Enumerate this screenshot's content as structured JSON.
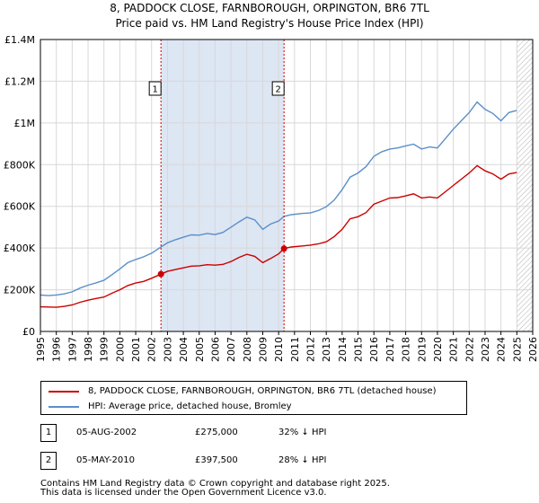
{
  "title_line1": "8, PADDOCK CLOSE, FARNBOROUGH, ORPINGTON, BR6 7TL",
  "title_line2": "Price paid vs. HM Land Registry's House Price Index (HPI)",
  "colors": {
    "property": "#cc0000",
    "hpi": "#5b8fc9",
    "shade": "#dde6f3",
    "grid": "#d8d8d8"
  },
  "chart_data": {
    "type": "line",
    "title": "Price paid vs. HM Land Registry's House Price Index (HPI)",
    "xlabel": "",
    "ylabel": "",
    "xlim": [
      1995,
      2026
    ],
    "ylim": [
      0,
      1400000
    ],
    "grid": true,
    "y_ticks": [
      {
        "value": 0,
        "label": "£0"
      },
      {
        "value": 200000,
        "label": "£200K"
      },
      {
        "value": 400000,
        "label": "£400K"
      },
      {
        "value": 600000,
        "label": "£600K"
      },
      {
        "value": 800000,
        "label": "£800K"
      },
      {
        "value": 1000000,
        "label": "£1M"
      },
      {
        "value": 1200000,
        "label": "£1.2M"
      },
      {
        "value": 1400000,
        "label": "£1.4M"
      }
    ],
    "x_ticks": [
      "1995",
      "1996",
      "1997",
      "1998",
      "1999",
      "2000",
      "2001",
      "2002",
      "2003",
      "2004",
      "2005",
      "2006",
      "2007",
      "2008",
      "2009",
      "2010",
      "2011",
      "2012",
      "2013",
      "2014",
      "2015",
      "2016",
      "2017",
      "2018",
      "2019",
      "2020",
      "2021",
      "2022",
      "2023",
      "2024",
      "2025",
      "2026"
    ],
    "shaded_ranges": [
      [
        2002.6,
        2010.35
      ]
    ],
    "hatched_from": 2025.0,
    "series": [
      {
        "name": "8, PADDOCK CLOSE, FARNBOROUGH, ORPINGTON, BR6 7TL (detached house)",
        "color": "#cc0000",
        "points": [
          [
            1995.0,
            118000
          ],
          [
            1995.5,
            117000
          ],
          [
            1996.0,
            116000
          ],
          [
            1996.5,
            120000
          ],
          [
            1997.0,
            127000
          ],
          [
            1997.5,
            140000
          ],
          [
            1998.0,
            150000
          ],
          [
            1998.5,
            158000
          ],
          [
            1999.0,
            165000
          ],
          [
            1999.5,
            183000
          ],
          [
            2000.0,
            200000
          ],
          [
            2000.5,
            220000
          ],
          [
            2001.0,
            232000
          ],
          [
            2001.5,
            240000
          ],
          [
            2002.0,
            255000
          ],
          [
            2002.59,
            275000
          ],
          [
            2003.0,
            288000
          ],
          [
            2003.5,
            297000
          ],
          [
            2004.0,
            305000
          ],
          [
            2004.5,
            313000
          ],
          [
            2005.0,
            315000
          ],
          [
            2005.5,
            320000
          ],
          [
            2006.0,
            318000
          ],
          [
            2006.5,
            322000
          ],
          [
            2007.0,
            335000
          ],
          [
            2007.5,
            355000
          ],
          [
            2008.0,
            370000
          ],
          [
            2008.5,
            360000
          ],
          [
            2009.0,
            330000
          ],
          [
            2009.5,
            350000
          ],
          [
            2010.0,
            372000
          ],
          [
            2010.34,
            397500
          ],
          [
            2010.8,
            405000
          ],
          [
            2011.5,
            410000
          ],
          [
            2012.0,
            414000
          ],
          [
            2012.5,
            420000
          ],
          [
            2013.0,
            430000
          ],
          [
            2013.5,
            455000
          ],
          [
            2014.0,
            490000
          ],
          [
            2014.5,
            540000
          ],
          [
            2015.0,
            550000
          ],
          [
            2015.5,
            570000
          ],
          [
            2016.0,
            610000
          ],
          [
            2016.5,
            625000
          ],
          [
            2017.0,
            640000
          ],
          [
            2017.5,
            642000
          ],
          [
            2018.0,
            650000
          ],
          [
            2018.5,
            660000
          ],
          [
            2019.0,
            640000
          ],
          [
            2019.5,
            645000
          ],
          [
            2020.0,
            640000
          ],
          [
            2020.5,
            670000
          ],
          [
            2021.0,
            700000
          ],
          [
            2021.5,
            730000
          ],
          [
            2022.0,
            760000
          ],
          [
            2022.5,
            795000
          ],
          [
            2023.0,
            770000
          ],
          [
            2023.5,
            755000
          ],
          [
            2024.0,
            730000
          ],
          [
            2024.5,
            755000
          ],
          [
            2025.0,
            762000
          ]
        ]
      },
      {
        "name": "HPI: Average price, detached house, Bromley",
        "color": "#5b8fc9",
        "points": [
          [
            1995.0,
            175000
          ],
          [
            1995.5,
            172000
          ],
          [
            1996.0,
            175000
          ],
          [
            1996.5,
            180000
          ],
          [
            1997.0,
            190000
          ],
          [
            1997.5,
            208000
          ],
          [
            1998.0,
            222000
          ],
          [
            1998.5,
            233000
          ],
          [
            1999.0,
            245000
          ],
          [
            1999.5,
            272000
          ],
          [
            2000.0,
            300000
          ],
          [
            2000.5,
            330000
          ],
          [
            2001.0,
            345000
          ],
          [
            2001.5,
            358000
          ],
          [
            2002.0,
            375000
          ],
          [
            2002.59,
            405000
          ],
          [
            2003.0,
            425000
          ],
          [
            2003.5,
            440000
          ],
          [
            2004.0,
            452000
          ],
          [
            2004.5,
            463000
          ],
          [
            2005.0,
            462000
          ],
          [
            2005.5,
            470000
          ],
          [
            2006.0,
            465000
          ],
          [
            2006.5,
            475000
          ],
          [
            2007.0,
            500000
          ],
          [
            2007.5,
            525000
          ],
          [
            2008.0,
            548000
          ],
          [
            2008.5,
            535000
          ],
          [
            2009.0,
            490000
          ],
          [
            2009.5,
            515000
          ],
          [
            2010.0,
            530000
          ],
          [
            2010.34,
            552000
          ],
          [
            2010.8,
            560000
          ],
          [
            2011.5,
            566000
          ],
          [
            2012.0,
            568000
          ],
          [
            2012.5,
            580000
          ],
          [
            2013.0,
            598000
          ],
          [
            2013.5,
            630000
          ],
          [
            2014.0,
            680000
          ],
          [
            2014.5,
            740000
          ],
          [
            2015.0,
            760000
          ],
          [
            2015.5,
            790000
          ],
          [
            2016.0,
            840000
          ],
          [
            2016.5,
            862000
          ],
          [
            2017.0,
            875000
          ],
          [
            2017.5,
            880000
          ],
          [
            2018.0,
            890000
          ],
          [
            2018.5,
            898000
          ],
          [
            2019.0,
            875000
          ],
          [
            2019.5,
            885000
          ],
          [
            2020.0,
            880000
          ],
          [
            2020.5,
            925000
          ],
          [
            2021.0,
            970000
          ],
          [
            2021.5,
            1010000
          ],
          [
            2022.0,
            1050000
          ],
          [
            2022.5,
            1100000
          ],
          [
            2023.0,
            1065000
          ],
          [
            2023.5,
            1045000
          ],
          [
            2024.0,
            1010000
          ],
          [
            2024.5,
            1050000
          ],
          [
            2025.0,
            1060000
          ]
        ]
      }
    ],
    "markers": [
      {
        "label": "1",
        "x": 2002.59,
        "y": 275000
      },
      {
        "label": "2",
        "x": 2010.34,
        "y": 397500
      }
    ]
  },
  "legend": {
    "property_label": "8, PADDOCK CLOSE, FARNBOROUGH, ORPINGTON, BR6 7TL (detached house)",
    "hpi_label": "HPI: Average price, detached house, Bromley"
  },
  "transactions": [
    {
      "num": "1",
      "date": "05-AUG-2002",
      "price": "£275,000",
      "hpi": "32% ↓ HPI"
    },
    {
      "num": "2",
      "date": "05-MAY-2010",
      "price": "£397,500",
      "hpi": "28% ↓ HPI"
    }
  ],
  "footer": {
    "line1": "Contains HM Land Registry data © Crown copyright and database right 2025.",
    "line2": "This data is licensed under the Open Government Licence v3.0."
  }
}
